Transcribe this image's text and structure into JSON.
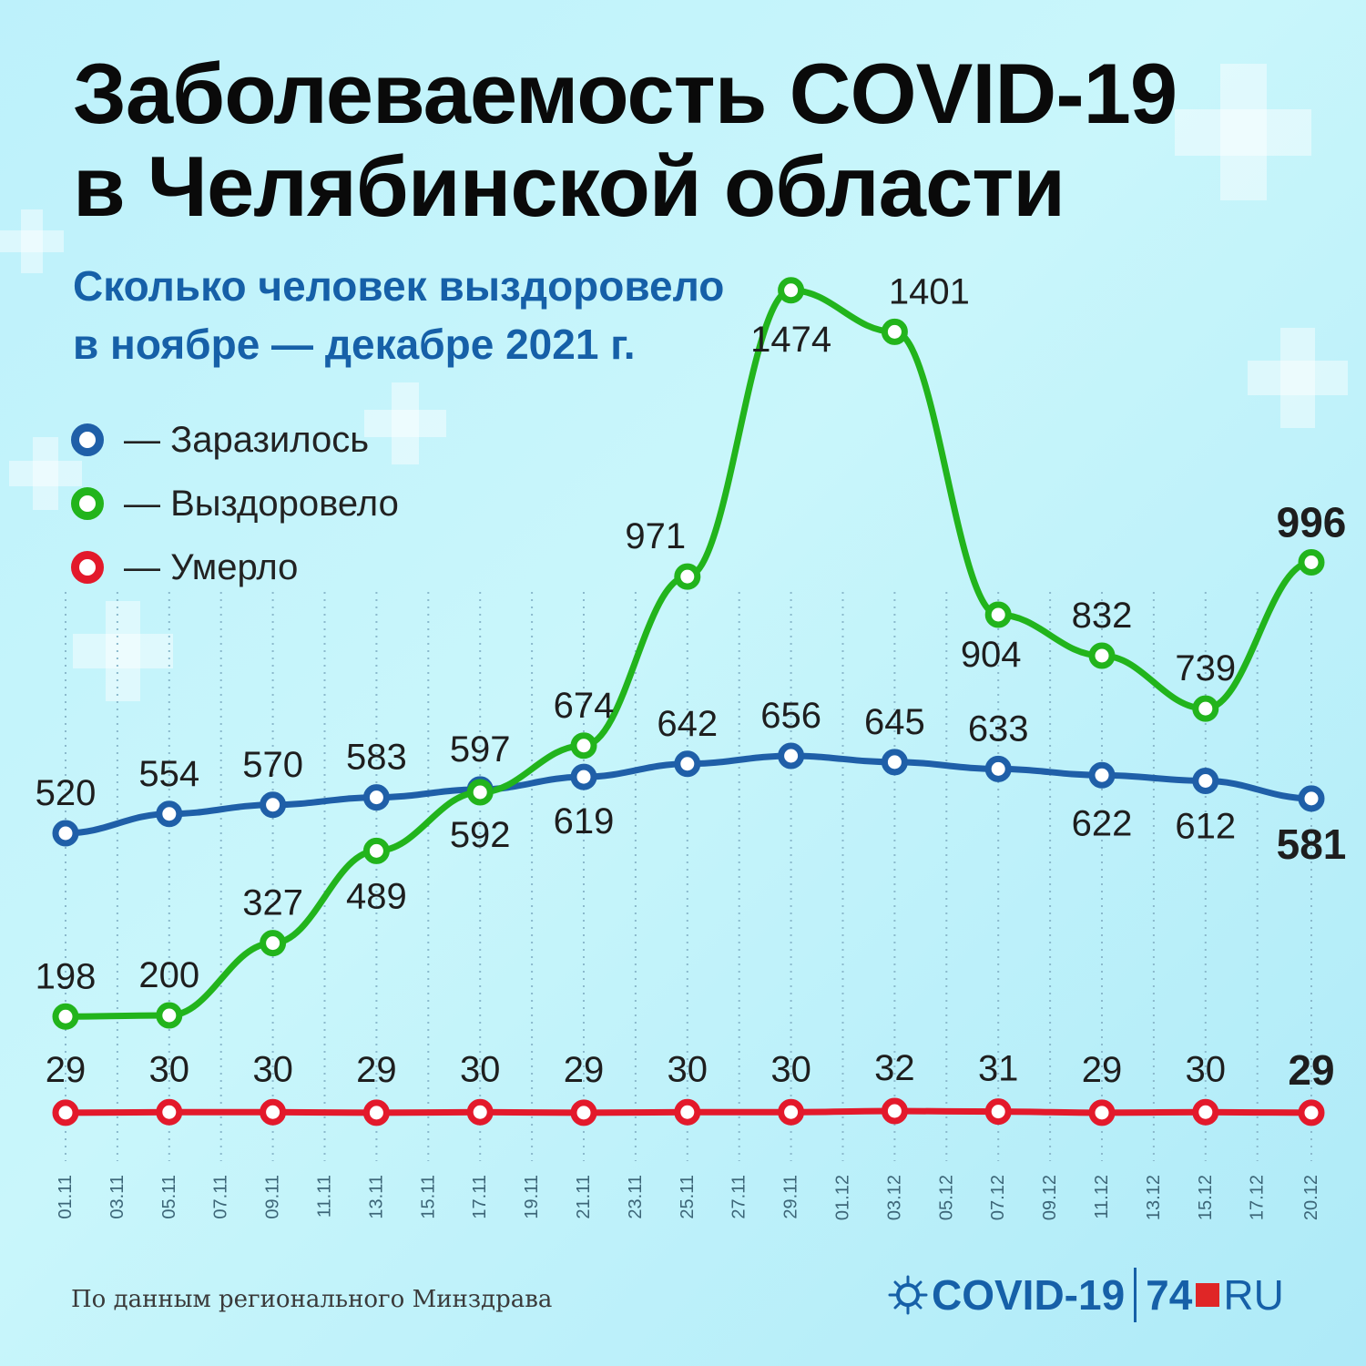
{
  "header": {
    "title_line1": "Заболеваемость COVID-19",
    "title_line2": "в Челябинской области",
    "subtitle_line1": "Сколько человек выздоровело",
    "subtitle_line2": "в ноябре — декабре 2021 г."
  },
  "legend": [
    {
      "label": "— Заразилось",
      "color": "#1f5fa8"
    },
    {
      "label": "— Выздоровело",
      "color": "#22b41c"
    },
    {
      "label": "— Умерло",
      "color": "#e3192b"
    }
  ],
  "footer": {
    "source": "По данным регионального Минздрава",
    "logo_covid": "COVID-19",
    "logo_74": "74",
    "logo_ru": "RU"
  },
  "chart_data": {
    "type": "line",
    "x_ticks": [
      "01.11",
      "03.11",
      "05.11",
      "07.11",
      "09.11",
      "11.11",
      "13.11",
      "15.11",
      "17.11",
      "19.11",
      "21.11",
      "23.11",
      "25.11",
      "27.11",
      "29.11",
      "01.12",
      "03.12",
      "05.12",
      "07.12",
      "09.12",
      "11.12",
      "13.12",
      "15.12",
      "17.12",
      "20.12"
    ],
    "marked_dates": [
      "01.11",
      "05.11",
      "09.11",
      "13.11",
      "17.11",
      "21.11",
      "25.11",
      "29.11",
      "03.12",
      "07.12",
      "11.12",
      "15.12",
      "20.12"
    ],
    "series": [
      {
        "name": "Заразилось",
        "color": "#1f5fa8",
        "values": [
          520,
          554,
          570,
          583,
          597,
          619,
          642,
          656,
          645,
          633,
          622,
          612,
          581
        ]
      },
      {
        "name": "Выздоровело",
        "color": "#22b41c",
        "values": [
          198,
          200,
          327,
          489,
          592,
          674,
          971,
          1474,
          1401,
          904,
          832,
          739,
          996
        ]
      },
      {
        "name": "Умерло",
        "color": "#e3192b",
        "values": [
          29,
          30,
          30,
          29,
          30,
          29,
          30,
          30,
          32,
          31,
          29,
          30,
          29
        ]
      }
    ]
  }
}
